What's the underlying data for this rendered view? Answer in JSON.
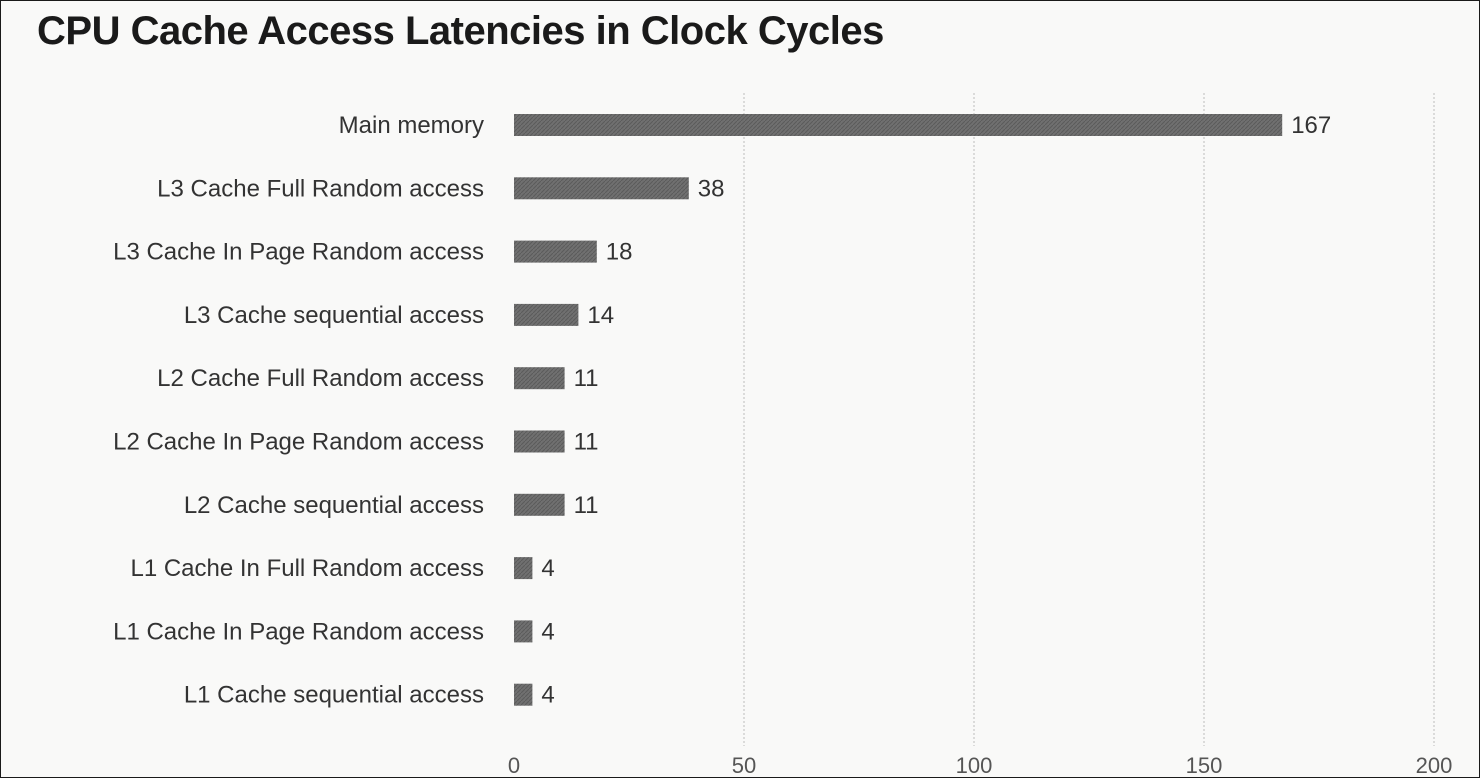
{
  "chart_data": {
    "type": "bar",
    "orientation": "horizontal",
    "title": "CPU Cache Access Latencies in Clock Cycles",
    "categories": [
      "Main memory",
      "L3 Cache Full Random access",
      "L3 Cache In Page Random access",
      "L3 Cache sequential access",
      "L2 Cache Full Random access",
      "L2 Cache In Page Random access",
      "L2 Cache sequential access",
      "L1 Cache In Full Random access",
      "L1 Cache In Page Random access",
      "L1 Cache sequential access"
    ],
    "values": [
      167,
      38,
      18,
      14,
      11,
      11,
      11,
      4,
      4,
      4
    ],
    "xlim": [
      0,
      200
    ],
    "xticks": [
      0,
      50,
      100,
      150,
      200
    ],
    "grid": "vertical",
    "legend": "none",
    "bar_color": "#6e6e6e"
  }
}
